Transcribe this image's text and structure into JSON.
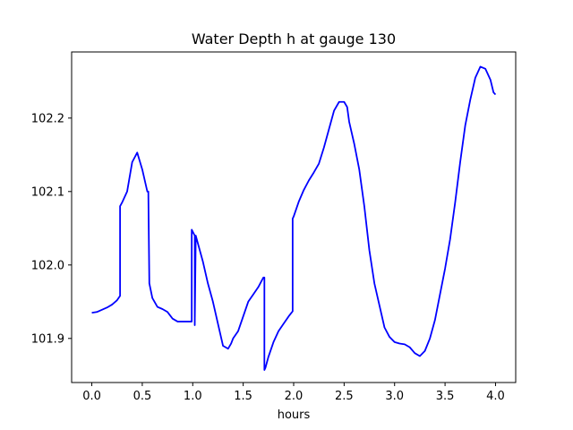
{
  "chart_data": {
    "type": "line",
    "title": "Water Depth h at gauge 130",
    "xlabel": "hours",
    "ylabel": "",
    "xlim": [
      -0.2,
      4.2
    ],
    "ylim": [
      101.84,
      102.29
    ],
    "x_ticks": [
      0.0,
      0.5,
      1.0,
      1.5,
      2.0,
      2.5,
      3.0,
      3.5,
      4.0
    ],
    "x_tick_labels": [
      "0.0",
      "0.5",
      "1.0",
      "1.5",
      "2.0",
      "2.5",
      "3.0",
      "3.5",
      "4.0"
    ],
    "y_ticks": [
      101.9,
      102.0,
      102.1,
      102.2
    ],
    "y_tick_labels": [
      "101.9",
      "102.0",
      "102.1",
      "102.2"
    ],
    "grid": false,
    "line_color": "#0000ff",
    "series": [
      {
        "x": [
          0.0,
          0.05,
          0.1,
          0.15,
          0.2,
          0.25,
          0.28,
          0.28,
          0.3,
          0.35,
          0.4,
          0.45,
          0.5,
          0.55,
          0.56,
          0.57,
          0.6,
          0.65,
          0.7,
          0.75,
          0.8,
          0.85,
          0.9,
          0.95,
          0.99,
          0.99,
          1.02,
          1.02,
          1.03,
          1.05,
          1.1,
          1.15,
          1.2,
          1.25,
          1.3,
          1.35,
          1.38,
          1.4,
          1.45,
          1.5,
          1.55,
          1.6,
          1.65,
          1.7,
          1.71,
          1.71,
          1.72,
          1.75,
          1.8,
          1.85,
          1.9,
          1.95,
          1.99,
          1.99,
          2.0,
          2.05,
          2.1,
          2.15,
          2.2,
          2.25,
          2.3,
          2.35,
          2.4,
          2.45,
          2.5,
          2.53,
          2.55,
          2.6,
          2.65,
          2.7,
          2.75,
          2.8,
          2.85,
          2.9,
          2.95,
          3.0,
          3.05,
          3.1,
          3.15,
          3.2,
          3.25,
          3.3,
          3.35,
          3.4,
          3.45,
          3.5,
          3.55,
          3.6,
          3.65,
          3.7,
          3.75,
          3.8,
          3.85,
          3.9,
          3.95,
          3.98,
          4.0
        ],
        "y": [
          101.935,
          101.936,
          101.939,
          101.942,
          101.946,
          101.952,
          101.958,
          102.08,
          102.085,
          102.1,
          102.14,
          102.153,
          102.13,
          102.1,
          102.1,
          101.975,
          101.955,
          101.943,
          101.94,
          101.936,
          101.927,
          101.923,
          101.923,
          101.923,
          101.923,
          102.048,
          102.04,
          101.918,
          102.04,
          102.03,
          102.005,
          101.975,
          101.95,
          101.92,
          101.89,
          101.886,
          101.893,
          101.9,
          101.91,
          101.93,
          101.95,
          101.96,
          101.97,
          101.983,
          101.983,
          101.857,
          101.86,
          101.875,
          101.895,
          101.91,
          101.92,
          101.93,
          101.937,
          102.063,
          102.066,
          102.086,
          102.102,
          102.115,
          102.126,
          102.138,
          102.16,
          102.185,
          102.21,
          102.222,
          102.222,
          102.215,
          102.195,
          102.165,
          102.13,
          102.08,
          102.02,
          101.975,
          101.945,
          101.915,
          101.902,
          101.895,
          101.893,
          101.892,
          101.888,
          101.88,
          101.876,
          101.883,
          101.9,
          101.925,
          101.96,
          101.995,
          102.035,
          102.085,
          102.14,
          102.19,
          102.225,
          102.255,
          102.27,
          102.267,
          102.252,
          102.235,
          102.232
        ]
      }
    ]
  }
}
